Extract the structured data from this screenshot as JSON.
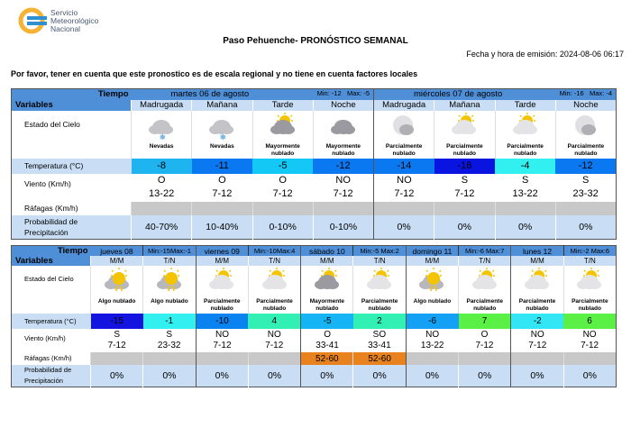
{
  "header": {
    "org_line1": "Servicio",
    "org_line2": "Meteorológico",
    "org_line3": "Nacional",
    "title": "Paso Pehuenche- PRONÓSTICO SEMANAL",
    "emission": "Fecha y hora de emisión: 2024-08-06 06:17",
    "notice": "Por favor, tener en cuenta que este pronostico es de escala regional y no tiene en cuenta factores locales"
  },
  "labels": {
    "tiempo": "Tiempo",
    "variables": "Variables",
    "sky": "Estado del Cielo",
    "temp": "Temperatura (°C)",
    "wind": "Viento (Km/h)",
    "gust": "Ráfagas (Km/h)",
    "prob1": "Probabilidad de",
    "prob2": "Precipitación"
  },
  "table1": {
    "days": [
      {
        "name": "martes 06 de agosto",
        "min": "Min: -12",
        "max": "Max: -5"
      },
      {
        "name": "miércoles 07 de agosto",
        "min": "Min: -16",
        "max": "Max: -4"
      }
    ],
    "periods": [
      {
        "label": "Madrugada",
        "icon": "snow-icon",
        "sky": "Nevadas",
        "temp": "-8",
        "color": "#1eb4f0",
        "dir": "O",
        "speed": "13-22",
        "gust": "",
        "prob": "40-70%"
      },
      {
        "label": "Mañana",
        "icon": "snow-icon",
        "sky": "Nevadas",
        "temp": "-11",
        "color": "#0a78f0",
        "dir": "O",
        "speed": "7-12",
        "gust": "",
        "prob": "10-40%"
      },
      {
        "label": "Tarde",
        "icon": "mostly-cloudy-icon",
        "sky": "Mayormente nublado",
        "temp": "-5",
        "color": "#14c8f5",
        "dir": "O",
        "speed": "7-12",
        "gust": "",
        "prob": "0-10%"
      },
      {
        "label": "Noche",
        "icon": "mostly-cloudy-night-icon",
        "sky": "Mayormente nublado",
        "temp": "-12",
        "color": "#0a78f0",
        "dir": "NO",
        "speed": "7-12",
        "gust": "",
        "prob": "0-10%"
      },
      {
        "label": "Madrugada",
        "icon": "partly-cloudy-night-icon",
        "sky": "Parcialmente nublado",
        "temp": "-14",
        "color": "#0a78f0",
        "dir": "NO",
        "speed": "7-12",
        "gust": "",
        "prob": "0%"
      },
      {
        "label": "Mañana",
        "icon": "partly-cloudy-icon",
        "sky": "Parcialmente nublado",
        "temp": "-16",
        "color": "#0a14e0",
        "dir": "S",
        "speed": "7-12",
        "gust": "",
        "prob": "0%"
      },
      {
        "label": "Tarde",
        "icon": "partly-cloudy-icon",
        "sky": "Parcialmente nublado",
        "temp": "-4",
        "color": "#32f0f0",
        "dir": "S",
        "speed": "13-22",
        "gust": "",
        "prob": "0%"
      },
      {
        "label": "Noche",
        "icon": "partly-cloudy-night-icon",
        "sky": "Parcialmente nublado",
        "temp": "-12",
        "color": "#0a78f0",
        "dir": "S",
        "speed": "23-32",
        "gust": "",
        "prob": "0%"
      }
    ]
  },
  "table2": {
    "days": [
      {
        "name": "jueves 08",
        "minmax": "Min:-15Max:-1"
      },
      {
        "name": "viernes 09",
        "minmax": "Min:-10Max:4"
      },
      {
        "name": "sábado 10",
        "minmax": "Min:-5  Max:2"
      },
      {
        "name": "domingo 11",
        "minmax": "Min:-6  Max:7"
      },
      {
        "name": "lunes 12",
        "minmax": "Min:-2  Max:6"
      }
    ],
    "periods": [
      {
        "label": "M/M",
        "icon": "few-clouds-icon",
        "sky": "Algo nublado",
        "temp": "-15",
        "color": "#1414e0",
        "dir": "S",
        "speed": "7-12",
        "gust": "",
        "prob": "0%"
      },
      {
        "label": "T/N",
        "icon": "few-clouds-icon",
        "sky": "Algo nublado",
        "temp": "-1",
        "color": "#32f0f0",
        "dir": "S",
        "speed": "23-32",
        "gust": "",
        "prob": "0%"
      },
      {
        "label": "M/M",
        "icon": "partly-cloudy-icon",
        "sky": "Parcialmente nublado",
        "temp": "-10",
        "color": "#0a82f0",
        "dir": "NO",
        "speed": "7-12",
        "gust": "",
        "prob": "0%"
      },
      {
        "label": "T/N",
        "icon": "partly-cloudy-icon",
        "sky": "Parcialmente nublado",
        "temp": "4",
        "color": "#32f0b4",
        "dir": "NO",
        "speed": "7-12",
        "gust": "",
        "prob": "0%"
      },
      {
        "label": "M/M",
        "icon": "mostly-cloudy-icon",
        "sky": "Mayormente nublado",
        "temp": "-5",
        "color": "#14b4f5",
        "dir": "O",
        "speed": "33-41",
        "gust": "52-60",
        "prob": "0%"
      },
      {
        "label": "T/N",
        "icon": "partly-cloudy-icon",
        "sky": "Parcialmente nublado",
        "temp": "2",
        "color": "#32f0b4",
        "dir": "SO",
        "speed": "33-41",
        "gust": "52-60",
        "prob": "0%"
      },
      {
        "label": "M/M",
        "icon": "few-clouds-icon",
        "sky": "Algo nublado",
        "temp": "-6",
        "color": "#14a0f5",
        "dir": "NO",
        "speed": "13-22",
        "gust": "",
        "prob": "0%"
      },
      {
        "label": "T/N",
        "icon": "partly-cloudy-icon",
        "sky": "Parcialmente nublado",
        "temp": "7",
        "color": "#5af046",
        "dir": "O",
        "speed": "7-12",
        "gust": "",
        "prob": "0%"
      },
      {
        "label": "M/M",
        "icon": "partly-cloudy-icon",
        "sky": "Parcialmente nublado",
        "temp": "-2",
        "color": "#32e6f5",
        "dir": "NO",
        "speed": "7-12",
        "gust": "",
        "prob": "0%"
      },
      {
        "label": "T/N",
        "icon": "partly-cloudy-icon",
        "sky": "Parcialmente nublado",
        "temp": "6",
        "color": "#5af046",
        "dir": "NO",
        "speed": "7-12",
        "gust": "",
        "prob": "0%"
      }
    ]
  },
  "colors": {
    "gust_alert": "#e8821e",
    "header": "#4f8fd8",
    "subheader": "#c9def5"
  }
}
